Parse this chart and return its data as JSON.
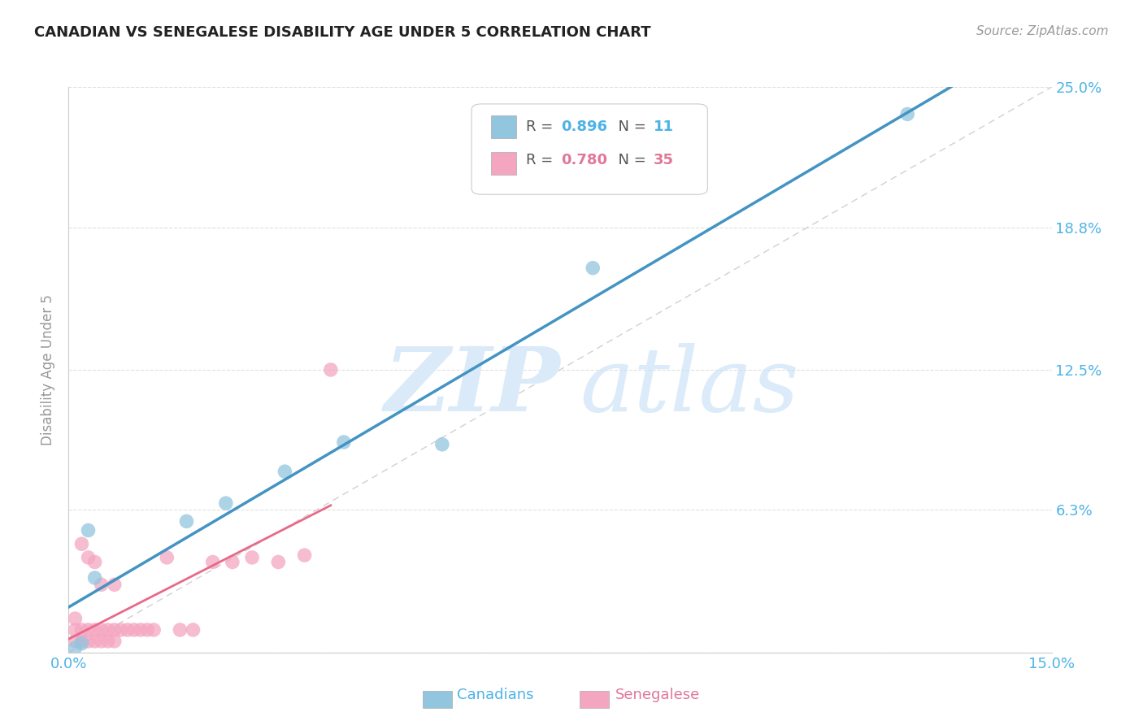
{
  "title": "CANADIAN VS SENEGALESE DISABILITY AGE UNDER 5 CORRELATION CHART",
  "source": "Source: ZipAtlas.com",
  "ylabel": "Disability Age Under 5",
  "xlim": [
    0.0,
    0.15
  ],
  "ylim": [
    0.0,
    0.25
  ],
  "xticks": [
    0.0,
    0.05,
    0.1,
    0.15
  ],
  "xtick_labels": [
    "0.0%",
    "",
    "",
    "15.0%"
  ],
  "yticks": [
    0.0,
    0.063,
    0.125,
    0.188,
    0.25
  ],
  "ytick_labels": [
    "",
    "6.3%",
    "12.5%",
    "18.8%",
    "25.0%"
  ],
  "canadian_color": "#92c5de",
  "senegalese_color": "#f4a6c0",
  "line_color_canadian": "#4393c3",
  "line_color_senegalese": "#e8698a",
  "diagonal_color": "#cccccc",
  "r_canadian": "0.896",
  "n_canadian": "11",
  "r_senegalese": "0.780",
  "n_senegalese": "35",
  "label_color_blue": "#4db3e6",
  "label_color_pink": "#e07898",
  "label_color_gray": "#999999",
  "canadian_x": [
    0.001,
    0.002,
    0.003,
    0.004,
    0.018,
    0.024,
    0.033,
    0.042,
    0.057,
    0.08,
    0.128
  ],
  "canadian_y": [
    0.002,
    0.004,
    0.054,
    0.033,
    0.058,
    0.066,
    0.08,
    0.093,
    0.092,
    0.17,
    0.238
  ],
  "senegalese_x": [
    0.001,
    0.001,
    0.001,
    0.002,
    0.002,
    0.002,
    0.003,
    0.003,
    0.003,
    0.004,
    0.004,
    0.004,
    0.005,
    0.005,
    0.005,
    0.006,
    0.006,
    0.007,
    0.007,
    0.007,
    0.008,
    0.009,
    0.01,
    0.011,
    0.012,
    0.013,
    0.015,
    0.017,
    0.019,
    0.022,
    0.025,
    0.028,
    0.032,
    0.036,
    0.04
  ],
  "senegalese_y": [
    0.005,
    0.01,
    0.015,
    0.005,
    0.01,
    0.048,
    0.005,
    0.01,
    0.042,
    0.005,
    0.01,
    0.04,
    0.005,
    0.01,
    0.03,
    0.005,
    0.01,
    0.005,
    0.01,
    0.03,
    0.01,
    0.01,
    0.01,
    0.01,
    0.01,
    0.01,
    0.042,
    0.01,
    0.01,
    0.04,
    0.04,
    0.042,
    0.04,
    0.043,
    0.125
  ],
  "background_color": "#ffffff",
  "grid_color": "#e0e0e0"
}
